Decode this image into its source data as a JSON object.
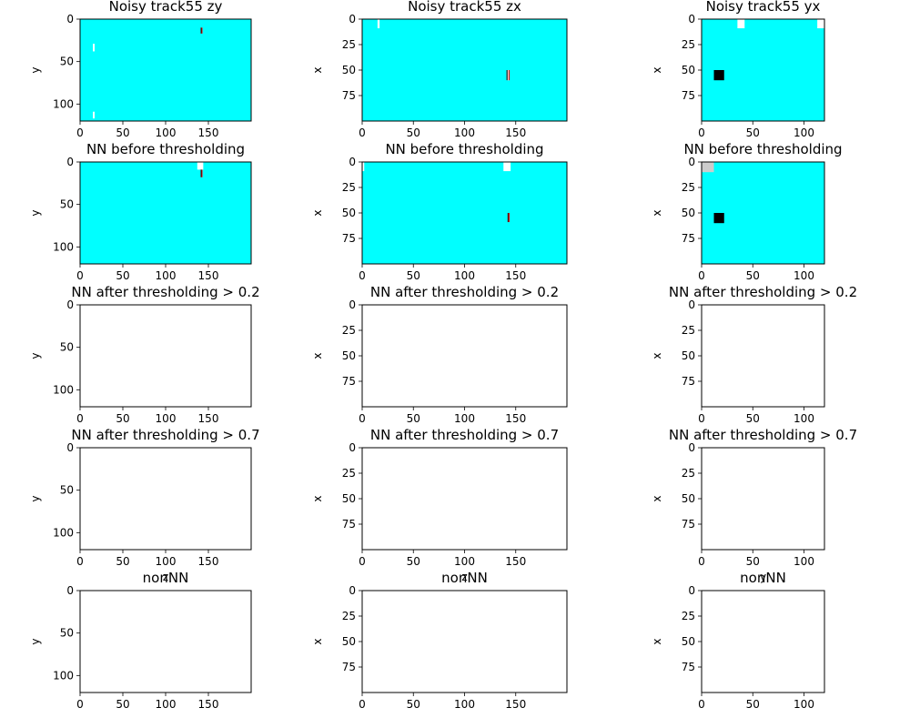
{
  "figure": {
    "background": "#ffffff"
  },
  "chart_data": [
    {
      "type": "heatmap",
      "title": "Noisy track55 zy",
      "xlabel": "",
      "ylabel": "y",
      "xlim": [
        0,
        200
      ],
      "ylim": [
        120,
        0
      ],
      "xticks": [
        0,
        50,
        100,
        150
      ],
      "yticks": [
        0,
        50,
        100
      ],
      "background": "#00ffff",
      "marks": [
        {
          "x": [
            141,
            143
          ],
          "y": [
            10,
            17
          ],
          "color": "#ffffff"
        },
        {
          "x": [
            141,
            142
          ],
          "y": [
            10,
            17
          ],
          "color": "#000000"
        },
        {
          "x": [
            142,
            143
          ],
          "y": [
            10,
            17
          ],
          "color": "#ff0000"
        },
        {
          "x": [
            15,
            17
          ],
          "y": [
            29,
            38
          ],
          "color": "#ffffff"
        },
        {
          "x": [
            15,
            17
          ],
          "y": [
            109,
            117
          ],
          "color": "#ffffff"
        }
      ]
    },
    {
      "type": "heatmap",
      "title": "Noisy track55 zx",
      "xlabel": "",
      "ylabel": "x",
      "xlim": [
        0,
        200
      ],
      "ylim": [
        100,
        0
      ],
      "xticks": [
        0,
        50,
        100,
        150
      ],
      "yticks": [
        0,
        25,
        50,
        75
      ],
      "background": "#00ffff",
      "marks": [
        {
          "x": [
            15,
            17
          ],
          "y": [
            0,
            9
          ],
          "color": "#ffffff"
        },
        {
          "x": [
            141,
            144
          ],
          "y": [
            50,
            60
          ],
          "color": "#ffffff"
        },
        {
          "x": [
            141,
            142
          ],
          "y": [
            50,
            60
          ],
          "color": "#000000"
        },
        {
          "x": [
            143,
            144
          ],
          "y": [
            50,
            60
          ],
          "color": "#ff0000"
        }
      ]
    },
    {
      "type": "heatmap",
      "title": "Noisy track55 yx",
      "xlabel": "",
      "ylabel": "x",
      "xlim": [
        0,
        120
      ],
      "ylim": [
        100,
        0
      ],
      "xticks": [
        0,
        50,
        100
      ],
      "yticks": [
        0,
        25,
        50,
        75
      ],
      "background": "#00ffff",
      "marks": [
        {
          "x": [
            35,
            42
          ],
          "y": [
            0,
            9
          ],
          "color": "#ffffff"
        },
        {
          "x": [
            113,
            120
          ],
          "y": [
            0,
            9
          ],
          "color": "#ffffff"
        },
        {
          "x": [
            12,
            22
          ],
          "y": [
            50,
            60
          ],
          "color": "#000000"
        }
      ]
    },
    {
      "type": "heatmap",
      "title": "NN before thresholding",
      "xlabel": "",
      "ylabel": "y",
      "xlim": [
        0,
        200
      ],
      "ylim": [
        120,
        0
      ],
      "xticks": [
        0,
        50,
        100,
        150
      ],
      "yticks": [
        0,
        50,
        100
      ],
      "background": "#00ffff",
      "marks": [
        {
          "x": [
            137,
            144
          ],
          "y": [
            0,
            9
          ],
          "color": "#ffffff"
        },
        {
          "x": [
            141,
            143
          ],
          "y": [
            9,
            18
          ],
          "color": "#ffffff"
        },
        {
          "x": [
            141,
            142
          ],
          "y": [
            9,
            18
          ],
          "color": "#000000"
        },
        {
          "x": [
            142,
            143
          ],
          "y": [
            9,
            18
          ],
          "color": "#ff0000"
        }
      ]
    },
    {
      "type": "heatmap",
      "title": "NN before thresholding",
      "xlabel": "",
      "ylabel": "x",
      "xlim": [
        0,
        200
      ],
      "ylim": [
        100,
        0
      ],
      "xticks": [
        0,
        50,
        100,
        150
      ],
      "yticks": [
        0,
        25,
        50,
        75
      ],
      "background": "#00ffff",
      "marks": [
        {
          "x": [
            0,
            2
          ],
          "y": [
            0,
            9
          ],
          "color": "#ffffff"
        },
        {
          "x": [
            138,
            145
          ],
          "y": [
            0,
            9
          ],
          "color": "#ffffff"
        },
        {
          "x": [
            142,
            144
          ],
          "y": [
            50,
            59
          ],
          "color": "#ffffff"
        },
        {
          "x": [
            142,
            143
          ],
          "y": [
            50,
            59
          ],
          "color": "#000000"
        },
        {
          "x": [
            143,
            144
          ],
          "y": [
            50,
            59
          ],
          "color": "#ff0000"
        }
      ]
    },
    {
      "type": "heatmap",
      "title": "NN before thresholding",
      "xlabel": "",
      "ylabel": "x",
      "xlim": [
        0,
        120
      ],
      "ylim": [
        100,
        0
      ],
      "xticks": [
        0,
        50,
        100
      ],
      "yticks": [
        0,
        25,
        50,
        75
      ],
      "background": "#00ffff",
      "marks": [
        {
          "x": [
            0,
            12
          ],
          "y": [
            0,
            10
          ],
          "color": "#cccccc"
        },
        {
          "x": [
            12,
            22
          ],
          "y": [
            50,
            60
          ],
          "color": "#000000"
        }
      ]
    },
    {
      "type": "heatmap",
      "title": "NN after thresholding > 0.2",
      "xlabel": "",
      "ylabel": "y",
      "xlim": [
        0,
        200
      ],
      "ylim": [
        120,
        0
      ],
      "xticks": [
        0,
        50,
        100,
        150
      ],
      "yticks": [
        0,
        50,
        100
      ],
      "background": "#ffffff",
      "marks": []
    },
    {
      "type": "heatmap",
      "title": "NN after thresholding > 0.2",
      "xlabel": "",
      "ylabel": "x",
      "xlim": [
        0,
        200
      ],
      "ylim": [
        100,
        0
      ],
      "xticks": [
        0,
        50,
        100,
        150
      ],
      "yticks": [
        0,
        25,
        50,
        75
      ],
      "background": "#ffffff",
      "marks": []
    },
    {
      "type": "heatmap",
      "title": "NN after thresholding > 0.2",
      "xlabel": "",
      "ylabel": "x",
      "xlim": [
        0,
        120
      ],
      "ylim": [
        100,
        0
      ],
      "xticks": [
        0,
        50,
        100
      ],
      "yticks": [
        0,
        25,
        50,
        75
      ],
      "background": "#ffffff",
      "marks": []
    },
    {
      "type": "heatmap",
      "title": "NN after thresholding > 0.7",
      "xlabel": "z",
      "ylabel": "y",
      "xlim": [
        0,
        200
      ],
      "ylim": [
        120,
        0
      ],
      "xticks": [
        0,
        50,
        100,
        150
      ],
      "yticks": [
        0,
        50,
        100
      ],
      "background": "#ffffff",
      "marks": []
    },
    {
      "type": "heatmap",
      "title": "NN after thresholding > 0.7",
      "xlabel": "z",
      "ylabel": "x",
      "xlim": [
        0,
        200
      ],
      "ylim": [
        100,
        0
      ],
      "xticks": [
        0,
        50,
        100,
        150
      ],
      "yticks": [
        0,
        25,
        50,
        75
      ],
      "background": "#ffffff",
      "marks": []
    },
    {
      "type": "heatmap",
      "title": "NN after thresholding > 0.7",
      "xlabel": "y",
      "ylabel": "x",
      "xlim": [
        0,
        120
      ],
      "ylim": [
        100,
        0
      ],
      "xticks": [
        0,
        50,
        100
      ],
      "yticks": [
        0,
        25,
        50,
        75
      ],
      "background": "#ffffff",
      "marks": []
    },
    {
      "type": "heatmap",
      "title": "nonNN",
      "xlabel": "",
      "ylabel": "y",
      "xlim": [
        0,
        200
      ],
      "ylim": [
        120,
        0
      ],
      "xticks": [
        0,
        50,
        100,
        150
      ],
      "yticks": [
        0,
        50,
        100
      ],
      "background": "#ffffff",
      "marks": []
    },
    {
      "type": "heatmap",
      "title": "nonNN",
      "xlabel": "",
      "ylabel": "x",
      "xlim": [
        0,
        200
      ],
      "ylim": [
        100,
        0
      ],
      "xticks": [
        0,
        50,
        100,
        150
      ],
      "yticks": [
        0,
        25,
        50,
        75
      ],
      "background": "#ffffff",
      "marks": []
    },
    {
      "type": "heatmap",
      "title": "nonNN",
      "xlabel": "",
      "ylabel": "x",
      "xlim": [
        0,
        120
      ],
      "ylim": [
        100,
        0
      ],
      "xticks": [
        0,
        50,
        100
      ],
      "yticks": [
        0,
        25,
        50,
        75
      ],
      "background": "#ffffff",
      "marks": []
    }
  ]
}
